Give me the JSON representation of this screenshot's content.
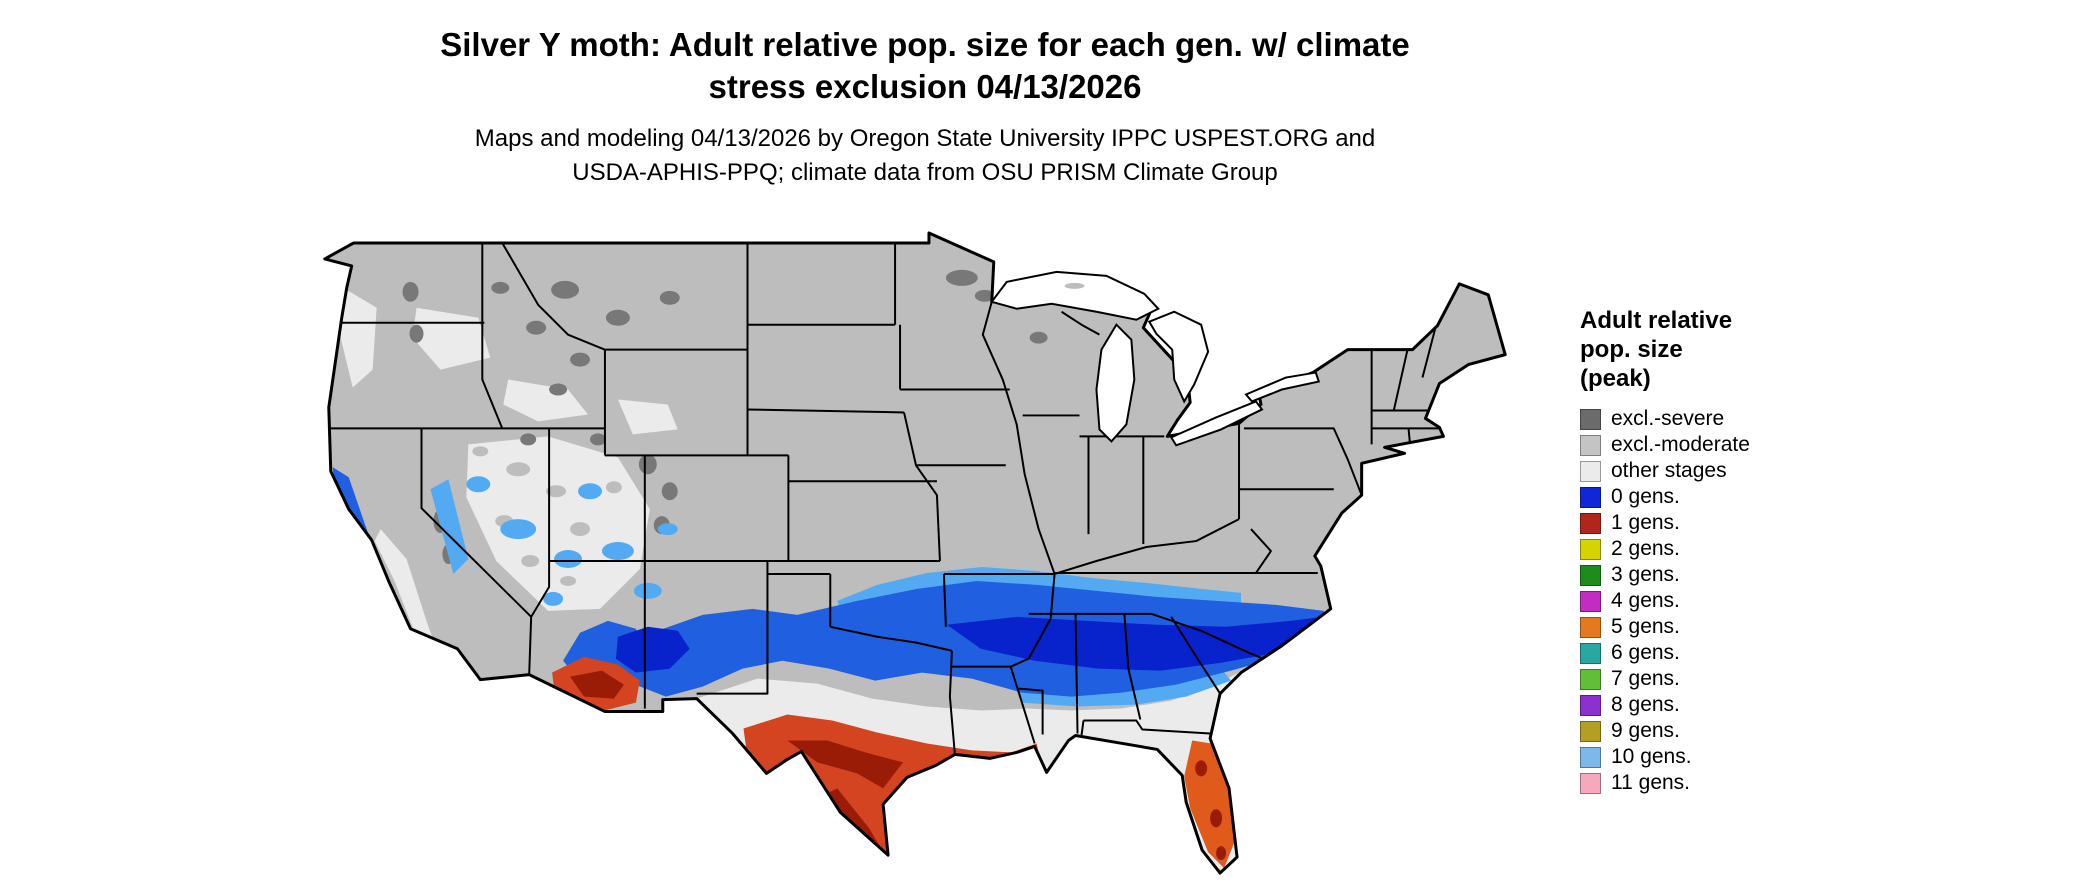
{
  "title": {
    "line1": "Silver Y moth: Adult relative pop. size for each gen. w/ climate",
    "line2": "stress exclusion 04/13/2026"
  },
  "subtitle": {
    "line1": "Maps and modeling 04/13/2026 by Oregon State University IPPC USPEST.ORG and",
    "line2": "USDA-APHIS-PPQ; climate data from OSU PRISM Climate Group"
  },
  "legend": {
    "title_lines": [
      "Adult relative",
      "pop. size",
      "(peak)"
    ],
    "items": [
      {
        "label": "excl.-severe",
        "color": "#6b6b6b"
      },
      {
        "label": "excl.-moderate",
        "color": "#c4c4c4"
      },
      {
        "label": "other stages",
        "color": "#ebebeb"
      },
      {
        "label": "0 gens.",
        "color": "#1026d8"
      },
      {
        "label": "1 gens.",
        "color": "#b0261c"
      },
      {
        "label": "2 gens.",
        "color": "#d6d400"
      },
      {
        "label": "3 gens.",
        "color": "#1d8c1d"
      },
      {
        "label": "4 gens.",
        "color": "#c22cc2"
      },
      {
        "label": "5 gens.",
        "color": "#e6781e"
      },
      {
        "label": "6 gens.",
        "color": "#28a8a0"
      },
      {
        "label": "7 gens.",
        "color": "#62bd38"
      },
      {
        "label": "8 gens.",
        "color": "#8c30d0"
      },
      {
        "label": "9 gens.",
        "color": "#b2a024"
      },
      {
        "label": "10 gens.",
        "color": "#7cb9ea"
      },
      {
        "label": "11 gens.",
        "color": "#f8a8bc"
      }
    ]
  },
  "map": {
    "region": "Continental United States",
    "palette": {
      "excluded_severe": "#787878",
      "excluded_moderate": "#bdbdbd",
      "other_stages": "#ebebeb",
      "gen0_blue": "#1f5fe0",
      "gen0_blue_dark": "#0822cc",
      "gen0_blue_light": "#54aaf2",
      "gen1_red": "#d44420",
      "gen1_red_dark": "#9a1c06",
      "gen1_orange": "#e05a1c",
      "gen2_yellow": "#d8d400",
      "background": "#ffffff",
      "border": "#000000"
    }
  }
}
